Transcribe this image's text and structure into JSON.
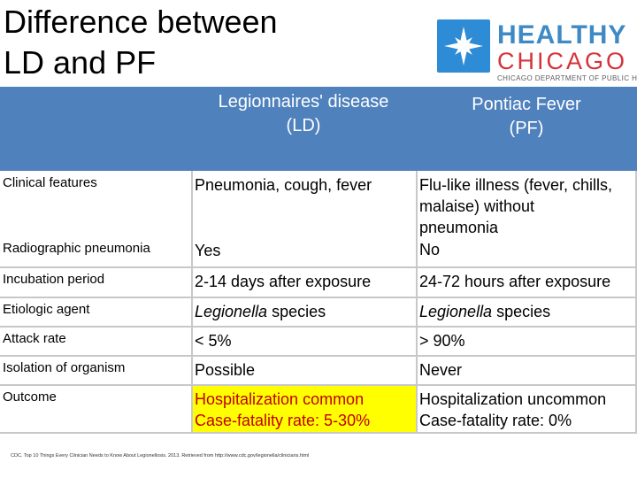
{
  "title_line1": "Difference between",
  "title_line2": "LD and PF",
  "logo": {
    "icon": "star-icon",
    "word1": "HEALTHY",
    "word2": "CHICAGO",
    "subtitle": "CHICAGO DEPARTMENT OF PUBLIC HEALTH",
    "colors": {
      "blue": "#3f89c4",
      "red": "#d6323a"
    }
  },
  "table": {
    "header_ld_line1": "Legionnaires' disease",
    "header_ld_line2": "(LD)",
    "header_pf_line1": "Pontiac Fever",
    "header_pf_line2": "(PF)",
    "header_color": "#4f81bd",
    "rows": [
      {
        "label": "Clinical features",
        "ld": "Pneumonia, cough, fever",
        "pf_line1": "Flu-like illness (fever, chills,",
        "pf_line2": "malaise) without",
        "pf_line3": "pneumonia"
      },
      {
        "label": "Radiographic pneumonia",
        "ld": "Yes",
        "pf": "No"
      },
      {
        "label": "Incubation period",
        "ld": "2-14 days after exposure",
        "pf": "24-72 hours after exposure"
      },
      {
        "label": "Etiologic agent",
        "ld_italic": "Legionella",
        "ld_rest": " species",
        "pf_italic": "Legionella",
        "pf_rest": " species"
      },
      {
        "label": "Attack rate",
        "ld": "< 5%",
        "pf": "> 90%"
      },
      {
        "label": "Isolation of organism",
        "ld": "Possible",
        "pf": "Never"
      },
      {
        "label": "Outcome",
        "ld_line1": "Hospitalization common",
        "ld_line2": "Case-fatality rate: 5-30%",
        "pf_line1": "Hospitalization uncommon",
        "pf_line2": "Case-fatality rate: 0%"
      }
    ],
    "highlight_color": "#ffff00"
  },
  "footer": "CDC. Top 10 Things Every Clinician Needs to Know About Legionellosis. 2013. Retrieved from http://www.cdc.gov/legionella/clinicians.html"
}
